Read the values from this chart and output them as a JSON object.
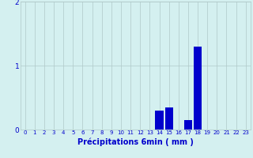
{
  "hours": [
    0,
    1,
    2,
    3,
    4,
    5,
    6,
    7,
    8,
    9,
    10,
    11,
    12,
    13,
    14,
    15,
    16,
    17,
    18,
    19,
    20,
    21,
    22,
    23
  ],
  "values": [
    0,
    0,
    0,
    0,
    0,
    0,
    0,
    0,
    0,
    0,
    0,
    0,
    0,
    0,
    0.3,
    0.35,
    0,
    0.15,
    1.3,
    0,
    0,
    0,
    0,
    0
  ],
  "bar_color": "#0000cc",
  "background_color": "#d4f0f0",
  "grid_color": "#b0c8c8",
  "tick_color": "#0000cc",
  "xlabel": "Précipitations 6min ( mm )",
  "xlabel_color": "#0000cc",
  "ylim": [
    0,
    2
  ],
  "yticks": [
    0,
    1,
    2
  ],
  "xlim": [
    -0.5,
    23.5
  ]
}
